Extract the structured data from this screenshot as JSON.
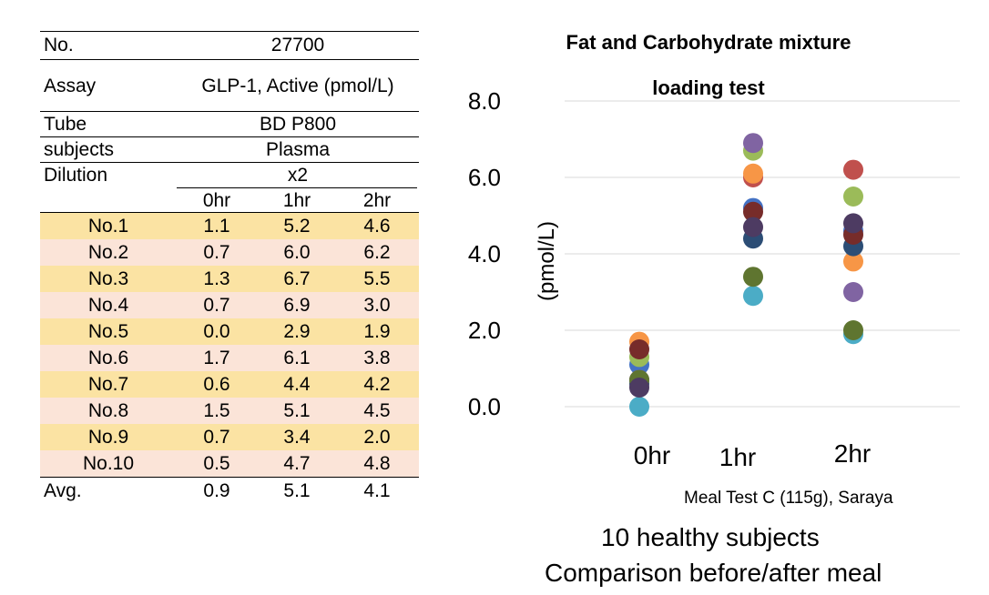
{
  "table": {
    "meta": [
      {
        "label": "No.",
        "value": "27700"
      },
      {
        "label": "Assay",
        "value": "GLP-1, Active (pmol/L)"
      },
      {
        "label": "Tube",
        "value": "BD P800"
      },
      {
        "label": "subjects",
        "value": "Plasma"
      },
      {
        "label": "Dilution",
        "value": "x2"
      }
    ],
    "columns": [
      "0hr",
      "1hr",
      "2hr"
    ],
    "rows": [
      {
        "name": "No.1",
        "values": [
          "1.1",
          "5.2",
          "4.6"
        ]
      },
      {
        "name": "No.2",
        "values": [
          "0.7",
          "6.0",
          "6.2"
        ]
      },
      {
        "name": "No.3",
        "values": [
          "1.3",
          "6.7",
          "5.5"
        ]
      },
      {
        "name": "No.4",
        "values": [
          "0.7",
          "6.9",
          "3.0"
        ]
      },
      {
        "name": "No.5",
        "values": [
          "0.0",
          "2.9",
          "1.9"
        ]
      },
      {
        "name": "No.6",
        "values": [
          "1.7",
          "6.1",
          "3.8"
        ]
      },
      {
        "name": "No.7",
        "values": [
          "0.6",
          "4.4",
          "4.2"
        ]
      },
      {
        "name": "No.8",
        "values": [
          "1.5",
          "5.1",
          "4.5"
        ]
      },
      {
        "name": "No.9",
        "values": [
          "0.7",
          "3.4",
          "2.0"
        ]
      },
      {
        "name": "No.10",
        "values": [
          "0.5",
          "4.7",
          "4.8"
        ]
      }
    ],
    "average": {
      "label": "Avg.",
      "values": [
        "0.9",
        "5.1",
        "4.1"
      ]
    }
  },
  "chart_data": {
    "type": "scatter",
    "title": [
      "Fat and Carbohydrate mixture",
      "loading test"
    ],
    "ylabel": "(pmol/L)",
    "xlabel": "",
    "categories": [
      "0hr",
      "1hr",
      "2hr"
    ],
    "ylim": [
      0,
      8
    ],
    "yticks": [
      "0.0",
      "2.0",
      "4.0",
      "6.0",
      "8.0"
    ],
    "grid": true,
    "series": [
      {
        "values": [
          1.1,
          5.2,
          4.6
        ],
        "color": "#4472c4"
      },
      {
        "values": [
          0.7,
          6.0,
          6.2
        ],
        "color": "#c0504d"
      },
      {
        "values": [
          1.3,
          6.7,
          5.5
        ],
        "color": "#9bbb59"
      },
      {
        "values": [
          0.7,
          6.9,
          3.0
        ],
        "color": "#8064a2"
      },
      {
        "values": [
          0.0,
          2.9,
          1.9
        ],
        "color": "#4bacc6"
      },
      {
        "values": [
          1.7,
          6.1,
          3.8
        ],
        "color": "#f79646"
      },
      {
        "values": [
          0.6,
          4.4,
          4.2
        ],
        "color": "#2c4d75"
      },
      {
        "values": [
          1.5,
          5.1,
          4.5
        ],
        "color": "#772c2a"
      },
      {
        "values": [
          0.7,
          3.4,
          2.0
        ],
        "color": "#5f7530"
      },
      {
        "values": [
          0.5,
          4.7,
          4.8
        ],
        "color": "#4d3b62"
      }
    ]
  },
  "source": "Meal Test C (115g), Saraya",
  "notes": [
    "10 healthy subjects",
    "Comparison before/after meal"
  ]
}
